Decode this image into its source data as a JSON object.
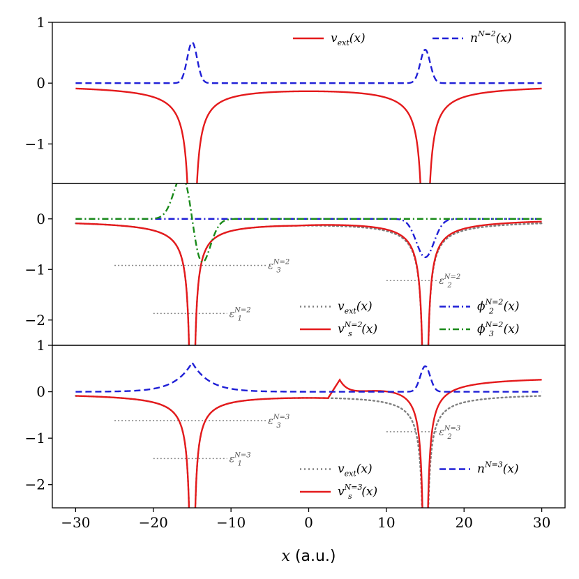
{
  "chart_data": [
    {
      "type": "line",
      "panel": "top",
      "xlim": [
        -33,
        33
      ],
      "ylim": [
        -1.65,
        1.0
      ],
      "yticks": [
        1,
        0,
        -1
      ],
      "ytick_labels": [
        "1",
        "0",
        "−1"
      ],
      "legend": {
        "placement": "top-right",
        "columns": 2
      },
      "series": [
        {
          "name": "v_ext(x)",
          "label_main": "v",
          "label_sub": "ext",
          "label_sup": "",
          "label_tail": "(x)",
          "style": "solid",
          "color": "#e41a1c",
          "fn": "vext"
        },
        {
          "name": "n^{N=2}(x)",
          "label_main": "n",
          "label_sub": "",
          "label_sup": "N=2",
          "label_tail": "(x)",
          "style": "dashed",
          "color": "#1f1fd6",
          "fn": "dens2"
        }
      ],
      "annotations": []
    },
    {
      "type": "line",
      "panel": "middle",
      "xlim": [
        -33,
        33
      ],
      "ylim": [
        -2.5,
        0.7
      ],
      "yticks": [
        0,
        -1,
        -2
      ],
      "ytick_labels": [
        "0",
        "−1",
        "−2"
      ],
      "legend": {
        "placement": "bottom-right",
        "columns": 2
      },
      "series": [
        {
          "name": "v_ext(x)",
          "label_main": "v",
          "label_sub": "ext",
          "label_sup": "",
          "label_tail": "(x)",
          "style": "dotted",
          "color": "#808080",
          "fn": "vext"
        },
        {
          "name": "v_s^{N=2}(x)",
          "label_main": "v",
          "label_sub": "s",
          "label_sup": "N=2",
          "label_tail": "(x)",
          "style": "solid",
          "color": "#e41a1c",
          "fn": "vs2"
        },
        {
          "name": "phi_2^{N=2}(x)",
          "label_main": "ϕ",
          "label_sub": "2",
          "label_sup": "N=2",
          "label_tail": "(x)",
          "style": "dashdot",
          "color": "#1f1fd6",
          "fn": "phi2"
        },
        {
          "name": "phi_3^{N=2}(x)",
          "label_main": "ϕ",
          "label_sub": "3",
          "label_sup": "N=2",
          "label_tail": "(x)",
          "style": "dashdot",
          "color": "#1a8a1a",
          "fn": "phi3"
        }
      ],
      "annotations": [
        {
          "main": "ε",
          "sub": "3",
          "sup": "N=2",
          "y": -0.92,
          "x_start": -25,
          "x_end": -5.5
        },
        {
          "main": "ε",
          "sub": "2",
          "sup": "N=2",
          "y": -1.22,
          "x_start": 10,
          "x_end": 16.5
        },
        {
          "main": "ε",
          "sub": "1",
          "sup": "N=2",
          "y": -1.87,
          "x_start": -20,
          "x_end": -10.5
        }
      ]
    },
    {
      "type": "line",
      "panel": "bottom",
      "xlim": [
        -33,
        33
      ],
      "ylim": [
        -2.5,
        1.0
      ],
      "yticks": [
        1,
        0,
        -1,
        -2
      ],
      "ytick_labels": [
        "1",
        "0",
        "−1",
        "−2"
      ],
      "xticks": [
        -30,
        -20,
        -10,
        0,
        10,
        20,
        30
      ],
      "xtick_labels": [
        "−30",
        "−20",
        "−10",
        "0",
        "10",
        "20",
        "30"
      ],
      "legend": {
        "placement": "bottom-right",
        "columns": 2
      },
      "series": [
        {
          "name": "v_ext(x)",
          "label_main": "v",
          "label_sub": "ext",
          "label_sup": "",
          "label_tail": "(x)",
          "style": "dotted",
          "color": "#808080",
          "fn": "vext"
        },
        {
          "name": "v_s^{N=3}(x)",
          "label_main": "v",
          "label_sub": "s",
          "label_sup": "N=3",
          "label_tail": "(x)",
          "style": "solid",
          "color": "#e41a1c",
          "fn": "vs3"
        },
        {
          "name": "n^{N=3}(x)",
          "label_main": "n",
          "label_sub": "",
          "label_sup": "N=3",
          "label_tail": "(x)",
          "style": "dashed",
          "color": "#1f1fd6",
          "fn": "dens3"
        }
      ],
      "annotations": [
        {
          "main": "ε",
          "sub": "3",
          "sup": "N=3",
          "y": -0.62,
          "x_start": -25,
          "x_end": -5.5
        },
        {
          "main": "ε",
          "sub": "2",
          "sup": "N=3",
          "y": -0.86,
          "x_start": 10,
          "x_end": 16.5
        },
        {
          "main": "ε",
          "sub": "1",
          "sup": "N=3",
          "y": -1.44,
          "x_start": -20,
          "x_end": -10.5
        }
      ]
    }
  ],
  "xaxis": {
    "label_var": "x",
    "label_unit": " (a.u.)"
  }
}
